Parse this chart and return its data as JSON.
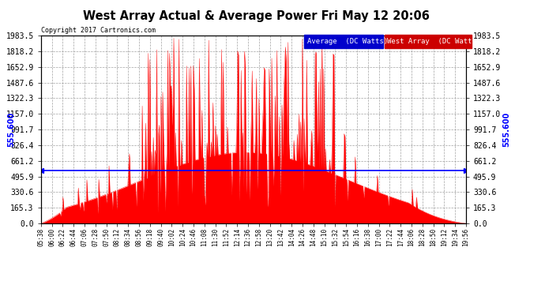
{
  "title": "West Array Actual & Average Power Fri May 12 20:06",
  "copyright": "Copyright 2017 Cartronics.com",
  "average_line_y": 555.6,
  "ymax": 1983.5,
  "ymin": 0.0,
  "yticks": [
    0.0,
    165.3,
    330.6,
    495.9,
    661.2,
    826.4,
    991.7,
    1157.0,
    1322.3,
    1487.6,
    1652.9,
    1818.2,
    1983.5
  ],
  "legend_avg_label": "Average  (DC Watts)",
  "legend_west_label": "West Array  (DC Watts)",
  "fill_color": "#ff0000",
  "avg_line_color": "#0000ff",
  "avg_legend_bg": "#0000cc",
  "west_legend_bg": "#cc0000",
  "grid_color": "#aaaaaa",
  "x_times": [
    "05:38",
    "06:00",
    "06:22",
    "06:44",
    "07:06",
    "07:28",
    "07:50",
    "08:12",
    "08:34",
    "08:56",
    "09:18",
    "09:40",
    "10:02",
    "10:24",
    "10:46",
    "11:08",
    "11:30",
    "11:52",
    "12:14",
    "12:36",
    "12:58",
    "13:20",
    "13:42",
    "14:04",
    "14:26",
    "14:48",
    "15:10",
    "15:32",
    "15:54",
    "16:16",
    "16:38",
    "17:00",
    "17:22",
    "17:44",
    "18:06",
    "18:28",
    "18:50",
    "19:12",
    "19:34",
    "19:56"
  ]
}
